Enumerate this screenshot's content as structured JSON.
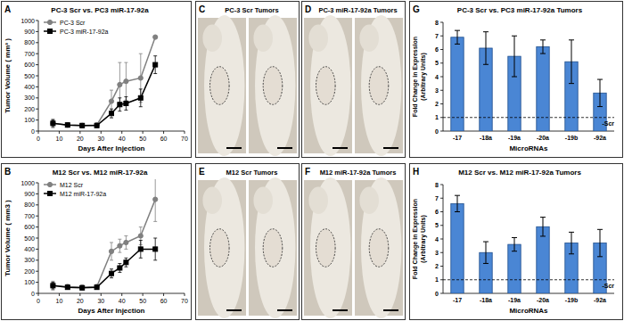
{
  "chart_data": [
    {
      "type": "line",
      "panel": "A",
      "title": "PC-3 Scr vs. PC3 miR-17-92a",
      "x_label": "Days After Injection",
      "y_label": "Tumor Volume ( mm³ )",
      "x": [
        7,
        14,
        21,
        28,
        35,
        39,
        42,
        49,
        56
      ],
      "series": [
        {
          "name": "PC-3 Scr",
          "color": "#808080",
          "marker": "circle",
          "values": [
            70,
            55,
            50,
            55,
            270,
            420,
            450,
            480,
            850
          ],
          "errors": [
            40,
            20,
            20,
            20,
            100,
            200,
            170,
            220,
            0
          ]
        },
        {
          "name": "PC-3 miR-17-92a",
          "color": "#000000",
          "marker": "square",
          "values": [
            70,
            55,
            50,
            50,
            160,
            240,
            250,
            300,
            600
          ],
          "errors": [
            30,
            15,
            15,
            15,
            40,
            60,
            60,
            80,
            80
          ]
        }
      ],
      "xlim": [
        0,
        70
      ],
      "xticks": [
        0,
        10,
        20,
        30,
        40,
        50,
        60,
        70
      ],
      "ylim": [
        0,
        1000
      ],
      "yticks": [
        0,
        100,
        200,
        300,
        400,
        500,
        600,
        700,
        800,
        900,
        1000
      ],
      "legend": "upper-left"
    },
    {
      "type": "line",
      "panel": "B",
      "title": "M12 Scr vs. M12 miR-17-92a",
      "x_label": "Days After Injection",
      "y_label": "Tumor Volume ( mm3 )",
      "x": [
        7,
        14,
        21,
        28,
        35,
        39,
        42,
        49,
        56
      ],
      "series": [
        {
          "name": "M12 Scr",
          "color": "#808080",
          "marker": "circle",
          "values": [
            70,
            60,
            55,
            60,
            380,
            430,
            460,
            520,
            850
          ],
          "errors": [
            40,
            20,
            20,
            20,
            80,
            60,
            60,
            80,
            200
          ]
        },
        {
          "name": "M12 miR-17-92a",
          "color": "#000000",
          "marker": "square",
          "values": [
            70,
            55,
            50,
            55,
            180,
            230,
            280,
            400,
            400
          ],
          "errors": [
            30,
            15,
            15,
            15,
            40,
            40,
            40,
            80,
            100
          ]
        }
      ],
      "xlim": [
        0,
        70
      ],
      "xticks": [
        0,
        10,
        20,
        30,
        40,
        50,
        60,
        70
      ],
      "ylim": [
        0,
        1000
      ],
      "yticks": [
        0,
        100,
        200,
        300,
        400,
        500,
        600,
        700,
        800,
        900,
        1000
      ],
      "legend": "upper-left"
    },
    {
      "type": "bar",
      "panel": "G",
      "title": "PC-3 Scr vs. PC3 miR-17-92a Tumors",
      "x_label": "MicroRNAs",
      "y_label": [
        "Fold Change in Expression",
        "(Arbitrary Units)"
      ],
      "categories": [
        "-17",
        "-18a",
        "-19a",
        "-20a",
        "-19b",
        "-92a"
      ],
      "values": [
        6.9,
        6.1,
        5.5,
        6.2,
        5.1,
        2.8
      ],
      "errors": [
        0.5,
        1.2,
        1.5,
        0.5,
        1.6,
        1.0
      ],
      "color": "#4a86d4",
      "reference": {
        "value": 1,
        "label": "-Scr"
      },
      "ylim": [
        0,
        8
      ],
      "yticks": [
        0,
        1,
        2,
        3,
        4,
        5,
        6,
        7,
        8
      ]
    },
    {
      "type": "bar",
      "panel": "H",
      "title": "M12 Scr  vs. M12 miR-17-92a Tumors",
      "x_label": "MicroRNAs",
      "y_label": [
        "Fold Change in Expression",
        "(Arbitrary Units)"
      ],
      "categories": [
        "-17",
        "-18a",
        "-19a",
        "-20a",
        "-19b",
        "-92a"
      ],
      "values": [
        6.6,
        3.0,
        3.6,
        4.9,
        3.7,
        3.7
      ],
      "errors": [
        0.6,
        0.8,
        0.5,
        0.7,
        0.8,
        1.0
      ],
      "color": "#4a86d4",
      "reference": {
        "value": 1,
        "label": "-Scr"
      },
      "ylim": [
        0,
        8
      ],
      "yticks": [
        0,
        1,
        2,
        3,
        4,
        5,
        6,
        7,
        8
      ]
    }
  ],
  "photos": [
    {
      "panel": "C",
      "title": "PC-3 Scr Tumors"
    },
    {
      "panel": "D",
      "title": "PC-3 miR-17-92a Tumors"
    },
    {
      "panel": "E",
      "title": "M12 Scr Tumors"
    },
    {
      "panel": "F",
      "title": "M12 miR-17-92a Tumors"
    }
  ]
}
